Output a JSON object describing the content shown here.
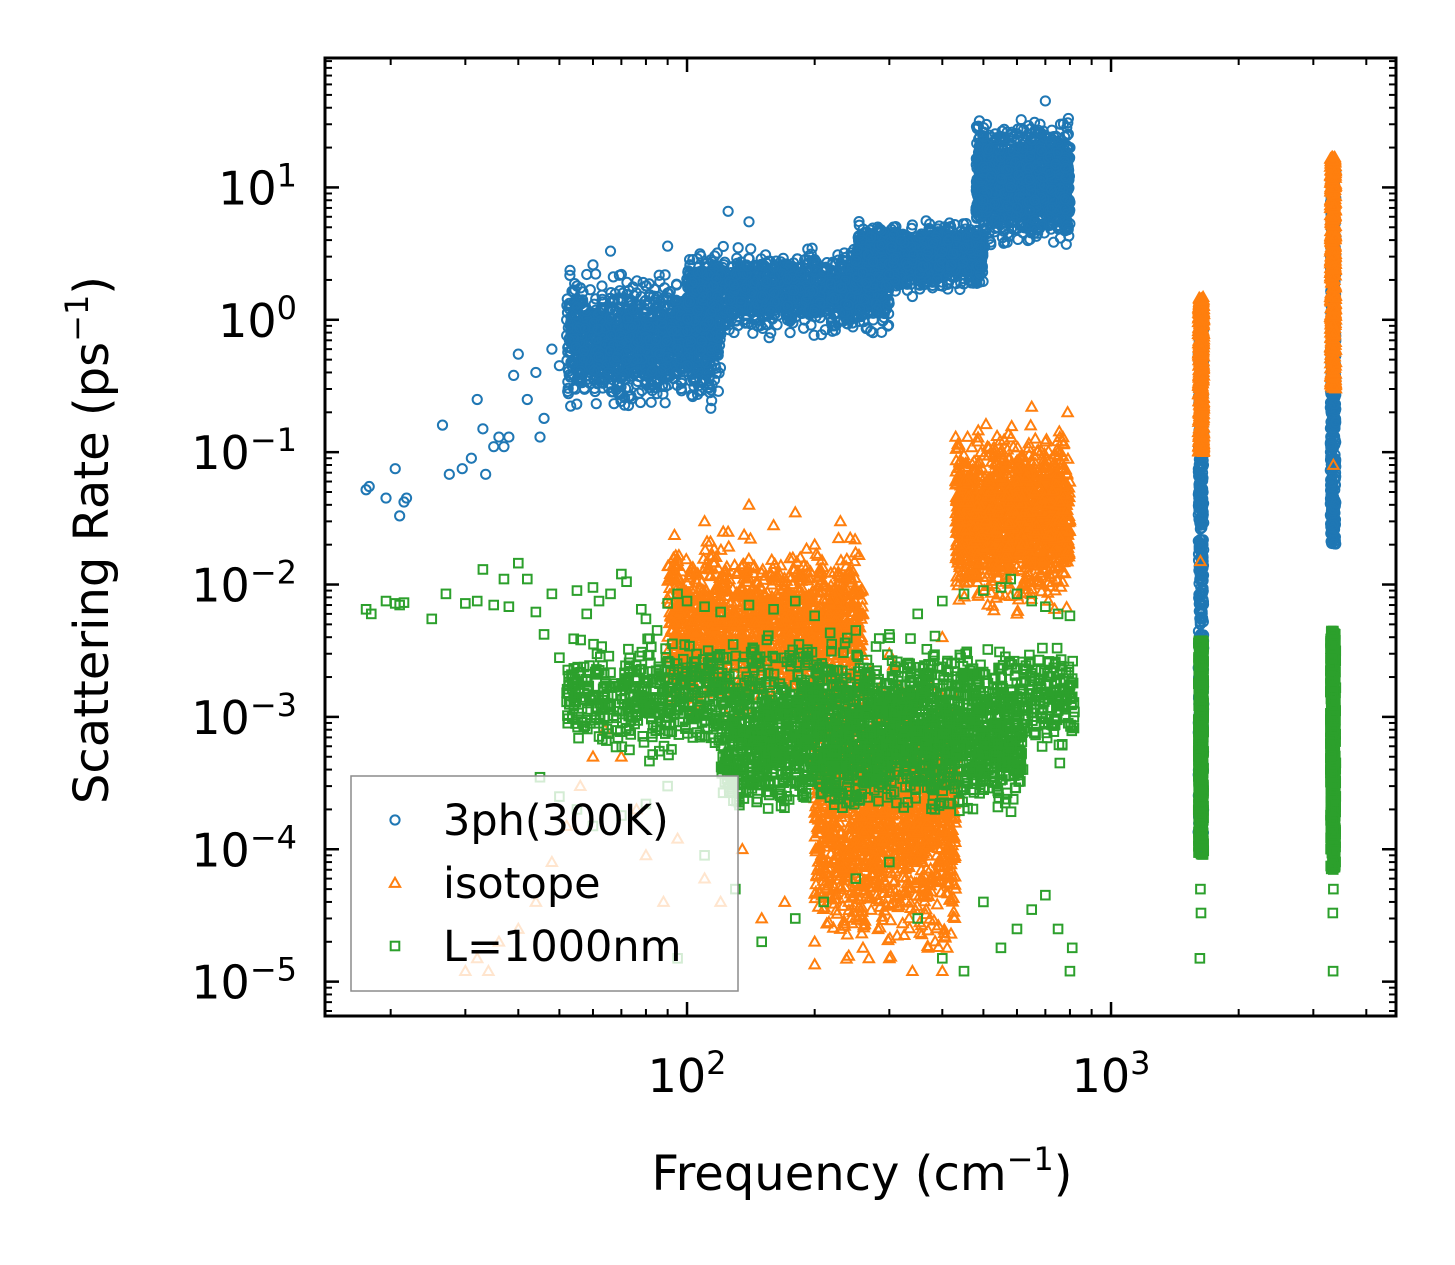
{
  "chart_data": {
    "type": "scatter",
    "title": "",
    "xlabel": "Frequency (cm",
    "xlabel_sup": "−1",
    "xlabel_close": ")",
    "ylabel": "Scattering Rate (ps",
    "ylabel_sup": "−1",
    "ylabel_close": ")",
    "xscale": "log",
    "yscale": "log",
    "xlim": [
      14,
      4700
    ],
    "ylim": [
      5.5e-06,
      95
    ],
    "x_ticks": [
      {
        "value": 100,
        "base": "10",
        "exp": "2"
      },
      {
        "value": 1000,
        "base": "10",
        "exp": "3"
      }
    ],
    "y_ticks": [
      {
        "value": 10,
        "base": "10",
        "exp": "1"
      },
      {
        "value": 1,
        "base": "10",
        "exp": "0"
      },
      {
        "value": 0.1,
        "base": "10",
        "exp": "−1"
      },
      {
        "value": 0.01,
        "base": "10",
        "exp": "−2"
      },
      {
        "value": 0.001,
        "base": "10",
        "exp": "−3"
      },
      {
        "value": 0.0001,
        "base": "10",
        "exp": "−4"
      },
      {
        "value": 1e-05,
        "base": "10",
        "exp": "−5"
      }
    ],
    "legend_position": "lower-left",
    "series": [
      {
        "name": "3ph(300K)",
        "marker": "circle",
        "color": "#1f77b4",
        "points": [
          [
            17.5,
            0.052
          ],
          [
            17.8,
            0.055
          ],
          [
            19.5,
            0.045
          ],
          [
            20.5,
            0.075
          ],
          [
            21,
            0.033
          ],
          [
            21.5,
            0.042
          ],
          [
            21.8,
            0.045
          ],
          [
            26.5,
            0.16
          ],
          [
            27.5,
            0.068
          ],
          [
            29.5,
            0.075
          ],
          [
            31,
            0.09
          ],
          [
            32,
            0.25
          ],
          [
            33,
            0.15
          ],
          [
            33.5,
            0.068
          ],
          [
            35,
            0.11
          ],
          [
            36,
            0.13
          ],
          [
            37,
            0.11
          ],
          [
            38,
            0.13
          ],
          [
            39,
            0.38
          ],
          [
            40,
            0.55
          ],
          [
            42,
            0.25
          ],
          [
            44,
            0.4
          ],
          [
            45,
            0.13
          ],
          [
            46,
            0.18
          ],
          [
            48,
            0.6
          ],
          [
            50,
            0.45
          ],
          [
            52,
            1.0
          ],
          [
            55,
            1.8
          ],
          [
            58,
            2.2
          ],
          [
            60,
            2.6
          ],
          [
            63,
            1.8
          ],
          [
            66,
            3.3
          ],
          [
            70,
            2.2
          ],
          [
            72,
            0.5
          ],
          [
            75,
            0.4
          ],
          [
            80,
            1.8
          ],
          [
            85,
            1.5
          ],
          [
            90,
            3.6
          ],
          [
            95,
            0.6
          ],
          [
            100,
            0.45
          ],
          [
            105,
            0.35
          ],
          [
            110,
            0.9
          ],
          [
            118,
            1.5
          ],
          [
            125,
            6.6
          ],
          [
            132,
            3.5
          ],
          [
            140,
            5.5
          ],
          [
            150,
            1.5
          ],
          [
            160,
            2.5
          ],
          [
            175,
            0.8
          ],
          [
            185,
            2.2
          ],
          [
            200,
            1.2
          ],
          [
            210,
            2.3
          ],
          [
            220,
            0.9
          ],
          [
            235,
            3.2
          ],
          [
            250,
            2.8
          ],
          [
            265,
            1.9
          ],
          [
            280,
            1.2
          ],
          [
            300,
            2.2
          ],
          [
            320,
            4.0
          ],
          [
            340,
            1.5
          ],
          [
            360,
            2.5
          ],
          [
            380,
            3.8
          ],
          [
            400,
            2.7
          ],
          [
            420,
            2.6
          ],
          [
            450,
            3.5
          ],
          [
            480,
            4.4
          ],
          [
            500,
            8.0
          ],
          [
            520,
            12.0
          ],
          [
            540,
            5.0
          ],
          [
            560,
            9.0
          ],
          [
            580,
            10.0
          ],
          [
            600,
            7.0
          ],
          [
            620,
            20.0
          ],
          [
            640,
            14.0
          ],
          [
            660,
            8.0
          ],
          [
            680,
            30.0
          ],
          [
            700,
            45.0
          ],
          [
            720,
            22.0
          ],
          [
            740,
            15.0
          ],
          [
            760,
            30.0
          ],
          [
            780,
            14.0
          ],
          [
            800,
            20.0
          ]
        ],
        "bands": [
          {
            "x": [
              52,
              120
            ],
            "ymin": 0.18,
            "ymax": 2.6
          },
          {
            "x": [
              100,
              300
            ],
            "ymin": 0.7,
            "ymax": 4.0
          },
          {
            "x": [
              250,
              500
            ],
            "ymin": 1.5,
            "ymax": 6.0
          },
          {
            "x": [
              480,
              800
            ],
            "ymin": 3.0,
            "ymax": 40.0
          }
        ],
        "columns": [
          {
            "x": 1630,
            "ymin": 0.0001,
            "ymax": 1.3
          },
          {
            "x": 3340,
            "ymin": 0.02,
            "ymax": 15.0
          }
        ]
      },
      {
        "name": "isotope",
        "marker": "triangle",
        "color": "#ff7f0e",
        "points": [
          [
            30,
            1.2e-05
          ],
          [
            32,
            1.5e-05
          ],
          [
            34,
            1.2e-05
          ],
          [
            36,
            2e-05
          ],
          [
            40,
            2.5e-05
          ],
          [
            44,
            4e-05
          ],
          [
            48,
            8e-05
          ],
          [
            52,
            0.00015
          ],
          [
            56,
            0.0003
          ],
          [
            60,
            0.0005
          ],
          [
            64,
            0.0008
          ],
          [
            70,
            0.0005
          ],
          [
            76,
            0.0002
          ],
          [
            80,
            9e-05
          ],
          [
            88,
            4e-05
          ],
          [
            95,
            0.00012
          ],
          [
            110,
            6e-05
          ],
          [
            120,
            4e-05
          ],
          [
            135,
            0.0001
          ],
          [
            150,
            3e-05
          ],
          [
            170,
            4e-05
          ],
          [
            200,
            2e-05
          ],
          [
            230,
            2.5e-05
          ],
          [
            260,
            1.8e-05
          ],
          [
            300,
            1.5e-05
          ],
          [
            340,
            1.2e-05
          ],
          [
            370,
            1.8e-05
          ],
          [
            400,
            1.2e-05
          ],
          [
            95,
            0.015
          ],
          [
            110,
            0.03
          ],
          [
            125,
            0.025
          ],
          [
            140,
            0.04
          ],
          [
            160,
            0.028
          ],
          [
            180,
            0.035
          ],
          [
            200,
            0.02
          ],
          [
            230,
            0.03
          ],
          [
            260,
            0.006
          ],
          [
            300,
            0.003
          ],
          [
            400,
            0.004
          ],
          [
            470,
            0.07
          ],
          [
            520,
            0.05
          ],
          [
            600,
            0.06
          ],
          [
            650,
            0.22
          ],
          [
            700,
            0.12
          ],
          [
            760,
            0.1
          ],
          [
            790,
            0.2
          ],
          [
            1620,
            1.4
          ],
          [
            1640,
            0.8
          ],
          [
            1610,
            0.12
          ],
          [
            1625,
            0.015
          ],
          [
            3340,
            16.0
          ],
          [
            3330,
            2.5
          ],
          [
            3350,
            0.4
          ],
          [
            3345,
            0.08
          ]
        ],
        "bands": [
          {
            "x": [
              90,
              260
            ],
            "ymin": 0.0008,
            "ymax": 0.03
          },
          {
            "x": [
              200,
              430
            ],
            "ymin": 1e-05,
            "ymax": 0.003
          },
          {
            "x": [
              430,
              800
            ],
            "ymin": 0.005,
            "ymax": 0.2
          }
        ],
        "columns": [
          {
            "x": 1630,
            "ymin": 0.1,
            "ymax": 1.5
          },
          {
            "x": 3340,
            "ymin": 0.3,
            "ymax": 17.0
          }
        ]
      },
      {
        "name": "L=1000nm",
        "marker": "square",
        "color": "#2ca02c",
        "points": [
          [
            17.5,
            0.0065
          ],
          [
            18,
            0.006
          ],
          [
            19.5,
            0.0075
          ],
          [
            20.5,
            0.0072
          ],
          [
            21,
            0.007
          ],
          [
            21.5,
            0.0073
          ],
          [
            25,
            0.0055
          ],
          [
            27,
            0.0085
          ],
          [
            30,
            0.0072
          ],
          [
            32,
            0.0075
          ],
          [
            33,
            0.013
          ],
          [
            35,
            0.007
          ],
          [
            37,
            0.011
          ],
          [
            38,
            0.0068
          ],
          [
            40,
            0.0145
          ],
          [
            42,
            0.011
          ],
          [
            44,
            0.0062
          ],
          [
            46,
            0.0042
          ],
          [
            48,
            0.0085
          ],
          [
            50,
            0.0028
          ],
          [
            52,
            0.0013
          ],
          [
            55,
            0.009
          ],
          [
            58,
            0.006
          ],
          [
            60,
            0.0095
          ],
          [
            62,
            0.0075
          ],
          [
            66,
            0.0085
          ],
          [
            70,
            0.012
          ],
          [
            72,
            0.0105
          ],
          [
            78,
            0.0065
          ],
          [
            80,
            0.0055
          ],
          [
            85,
            0.0045
          ],
          [
            90,
            0.0072
          ],
          [
            95,
            0.0085
          ],
          [
            100,
            0.0075
          ],
          [
            110,
            0.0068
          ],
          [
            120,
            0.0062
          ],
          [
            140,
            0.007
          ],
          [
            160,
            0.0065
          ],
          [
            180,
            0.0075
          ],
          [
            200,
            0.0058
          ],
          [
            250,
            0.0045
          ],
          [
            300,
            0.0042
          ],
          [
            350,
            0.006
          ],
          [
            400,
            0.0075
          ],
          [
            450,
            0.0085
          ],
          [
            500,
            0.009
          ],
          [
            550,
            0.0095
          ],
          [
            580,
            0.011
          ],
          [
            600,
            0.0085
          ],
          [
            650,
            0.0075
          ],
          [
            700,
            0.0068
          ],
          [
            750,
            0.006
          ],
          [
            800,
            0.0058
          ],
          [
            45,
            0.00035
          ],
          [
            50,
            0.00025
          ],
          [
            55,
            0.0002
          ],
          [
            60,
            0.00015
          ],
          [
            70,
            0.00018
          ],
          [
            80,
            0.00022
          ],
          [
            90,
            0.0003
          ],
          [
            95,
            1.5e-05
          ],
          [
            110,
            9e-05
          ],
          [
            130,
            5e-05
          ],
          [
            150,
            2e-05
          ],
          [
            180,
            3e-05
          ],
          [
            210,
            4e-05
          ],
          [
            250,
            6e-05
          ],
          [
            300,
            8e-05
          ],
          [
            350,
            3e-05
          ],
          [
            400,
            1.5e-05
          ],
          [
            450,
            1.2e-05
          ],
          [
            500,
            4e-05
          ],
          [
            550,
            1.8e-05
          ],
          [
            600,
            2.5e-05
          ],
          [
            650,
            3.5e-05
          ],
          [
            700,
            4.5e-05
          ],
          [
            750,
            2.5e-05
          ],
          [
            800,
            1.2e-05
          ],
          [
            810,
            1.8e-05
          ],
          [
            1620,
            1.5e-05
          ],
          [
            1630,
            3.3e-05
          ],
          [
            1625,
            5e-05
          ],
          [
            3340,
            1.2e-05
          ],
          [
            3335,
            3.3e-05
          ],
          [
            3345,
            5e-05
          ]
        ],
        "bands": [
          {
            "x": [
              52,
              820
            ],
            "ymin": 0.0004,
            "ymax": 0.005
          },
          {
            "x": [
              120,
              620
            ],
            "ymin": 0.00015,
            "ymax": 0.002
          }
        ],
        "columns": [
          {
            "x": 1630,
            "ymin": 9e-05,
            "ymax": 0.0038
          },
          {
            "x": 3340,
            "ymin": 7e-05,
            "ymax": 0.0045
          }
        ]
      }
    ]
  }
}
